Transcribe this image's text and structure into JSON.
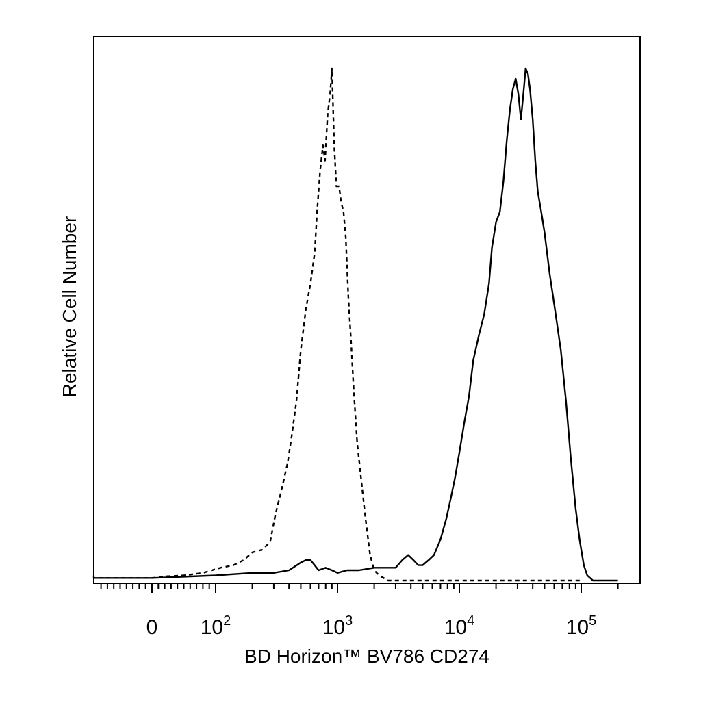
{
  "chart_data": {
    "type": "line",
    "subtype": "flow-cytometry-histogram",
    "title": "",
    "xlabel": "BD Horizon™ BV786 CD274",
    "ylabel": "Relative Cell Number",
    "x_scale": "biexponential (linear near 0, log above 10^2)",
    "x_tick_labels": [
      {
        "value": 0,
        "base": "0",
        "exp": ""
      },
      {
        "value": 100,
        "base": "10",
        "exp": "2"
      },
      {
        "value": 1000,
        "base": "10",
        "exp": "3"
      },
      {
        "value": 10000,
        "base": "10",
        "exp": "4"
      },
      {
        "value": 100000,
        "base": "10",
        "exp": "5"
      }
    ],
    "xlim": [
      -200,
      250000
    ],
    "ylim": [
      0,
      100
    ],
    "grid": false,
    "legend": "none",
    "series": [
      {
        "line_style": "dashed",
        "points": [
          [
            -200,
            1
          ],
          [
            -100,
            0.5
          ],
          [
            0,
            0.5
          ],
          [
            20,
            0.8
          ],
          [
            50,
            1
          ],
          [
            80,
            1.5
          ],
          [
            110,
            2.5
          ],
          [
            140,
            3
          ],
          [
            170,
            4
          ],
          [
            200,
            5.5
          ],
          [
            240,
            6
          ],
          [
            280,
            7.5
          ],
          [
            310,
            13
          ],
          [
            350,
            18
          ],
          [
            390,
            23
          ],
          [
            420,
            28
          ],
          [
            460,
            35
          ],
          [
            500,
            45
          ],
          [
            550,
            53
          ],
          [
            600,
            58
          ],
          [
            650,
            64
          ],
          [
            680,
            72
          ],
          [
            720,
            80
          ],
          [
            760,
            85
          ],
          [
            790,
            82
          ],
          [
            830,
            91
          ],
          [
            870,
            95
          ],
          [
            900,
            100
          ],
          [
            940,
            85
          ],
          [
            980,
            77
          ],
          [
            1030,
            77
          ],
          [
            1070,
            74
          ],
          [
            1120,
            72
          ],
          [
            1170,
            67
          ],
          [
            1230,
            55
          ],
          [
            1290,
            47
          ],
          [
            1360,
            37
          ],
          [
            1450,
            27
          ],
          [
            1560,
            20
          ],
          [
            1700,
            12
          ],
          [
            1850,
            5
          ],
          [
            2000,
            2
          ],
          [
            2200,
            1
          ],
          [
            2600,
            0
          ],
          [
            5000,
            0
          ],
          [
            100000,
            0
          ]
        ]
      },
      {
        "line_style": "solid",
        "points": [
          [
            -200,
            0.5
          ],
          [
            0,
            0.5
          ],
          [
            100,
            1
          ],
          [
            200,
            1.5
          ],
          [
            300,
            1.5
          ],
          [
            400,
            2
          ],
          [
            500,
            3.5
          ],
          [
            550,
            4
          ],
          [
            600,
            4
          ],
          [
            650,
            3
          ],
          [
            700,
            2
          ],
          [
            800,
            2.5
          ],
          [
            900,
            2
          ],
          [
            1000,
            1.5
          ],
          [
            1200,
            2
          ],
          [
            1500,
            2
          ],
          [
            2000,
            2.5
          ],
          [
            2500,
            2.5
          ],
          [
            3000,
            2.5
          ],
          [
            3400,
            4
          ],
          [
            3800,
            5
          ],
          [
            4200,
            4
          ],
          [
            4600,
            3
          ],
          [
            5000,
            3
          ],
          [
            5600,
            4
          ],
          [
            6200,
            5
          ],
          [
            7000,
            8
          ],
          [
            7800,
            12
          ],
          [
            8500,
            16
          ],
          [
            9200,
            20
          ],
          [
            10000,
            25
          ],
          [
            11000,
            31
          ],
          [
            12000,
            36
          ],
          [
            13000,
            43
          ],
          [
            14500,
            48
          ],
          [
            16000,
            52
          ],
          [
            17500,
            58
          ],
          [
            18500,
            65
          ],
          [
            20000,
            70
          ],
          [
            21500,
            72
          ],
          [
            23000,
            78
          ],
          [
            24500,
            86
          ],
          [
            26000,
            92
          ],
          [
            27500,
            96
          ],
          [
            29000,
            98
          ],
          [
            30500,
            95
          ],
          [
            32000,
            90
          ],
          [
            33500,
            95
          ],
          [
            35000,
            100
          ],
          [
            36500,
            99
          ],
          [
            38000,
            96
          ],
          [
            40000,
            90
          ],
          [
            42000,
            82
          ],
          [
            44000,
            76
          ],
          [
            47000,
            72
          ],
          [
            50000,
            68
          ],
          [
            55000,
            60
          ],
          [
            60000,
            54
          ],
          [
            68000,
            45
          ],
          [
            75000,
            35
          ],
          [
            82000,
            24
          ],
          [
            90000,
            14
          ],
          [
            97000,
            8
          ],
          [
            105000,
            3
          ],
          [
            112000,
            1
          ],
          [
            125000,
            0
          ],
          [
            200000,
            0
          ]
        ]
      }
    ]
  }
}
